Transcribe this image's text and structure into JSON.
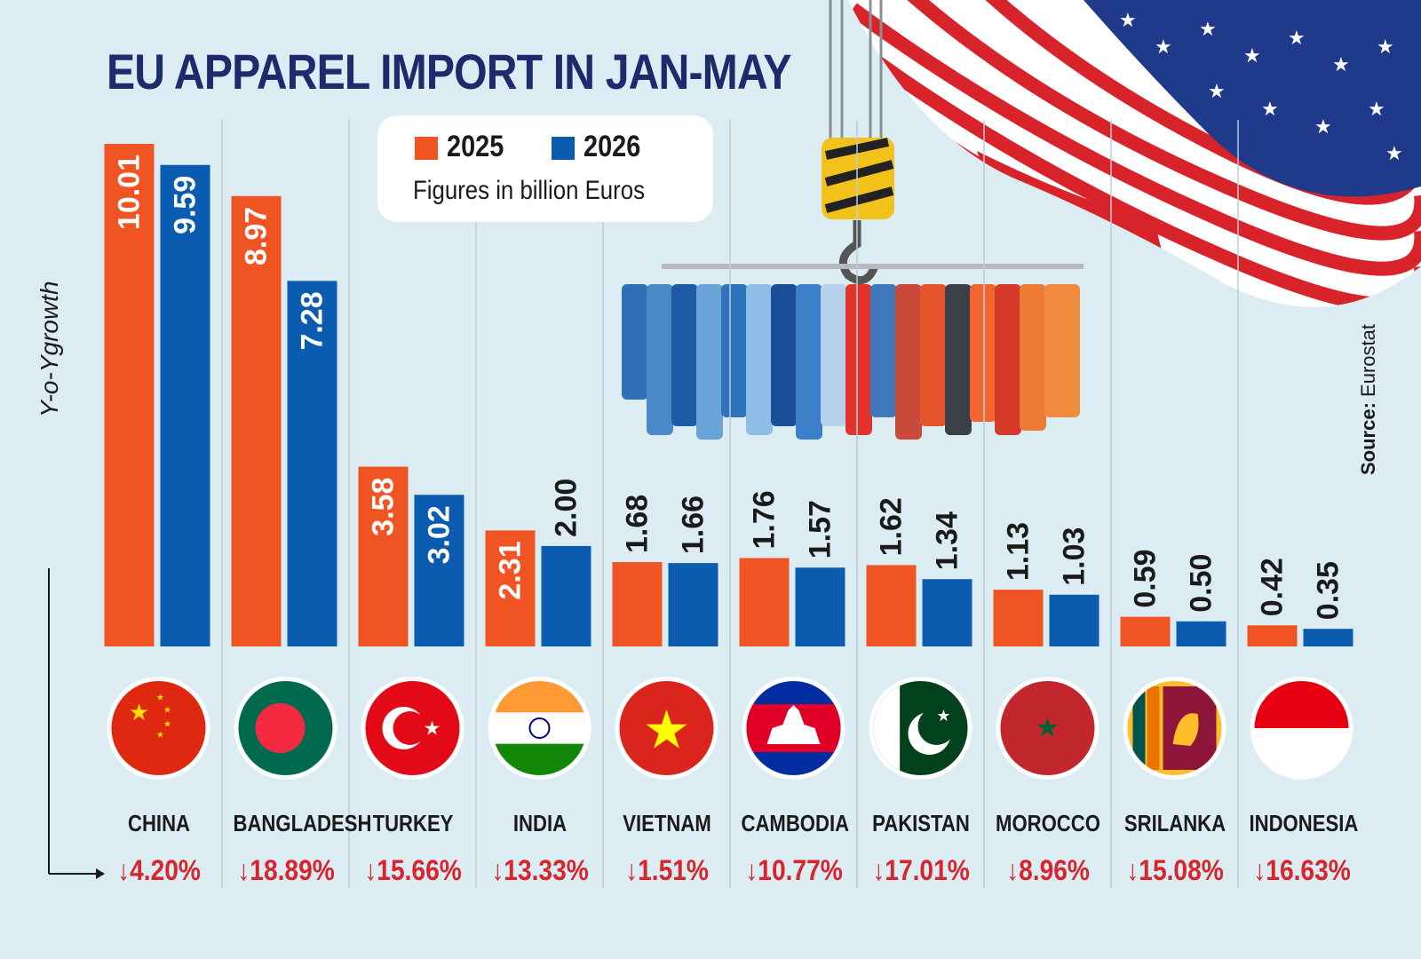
{
  "title": "EU APPAREL IMPORT IN JAN-MAY",
  "legend": {
    "items": [
      "2025",
      "2026"
    ],
    "note": "Figures in billion Euros"
  },
  "y_axis_label": "Y-o-Ygrowth",
  "source_label": "Source:",
  "source_value": "Eurostat",
  "colors": {
    "2025": "#f05423",
    "2026": "#0b5bb0",
    "growth": "#d9242b",
    "background": "#dcecf3",
    "title": "#1d2a6b"
  },
  "chart_data": {
    "type": "bar",
    "categories": [
      "CHINA",
      "BANGLADESH",
      "TURKEY",
      "INDIA",
      "VIETNAM",
      "CAMBODIA",
      "PAKISTAN",
      "MOROCCO",
      "SRILANKA",
      "INDONESIA"
    ],
    "series": [
      {
        "name": "2025",
        "values": [
          10.01,
          8.97,
          3.58,
          2.31,
          1.68,
          1.76,
          1.62,
          1.13,
          0.59,
          0.42
        ],
        "labels": [
          "10.01",
          "8.97",
          "3.58",
          "2.31",
          "1.68",
          "1.76",
          "1.62",
          "1.13",
          "0.59",
          "0.42"
        ]
      },
      {
        "name": "2026",
        "values": [
          9.59,
          7.28,
          3.02,
          2.0,
          1.66,
          1.57,
          1.34,
          1.03,
          0.5,
          0.35
        ],
        "labels": [
          "9.59",
          "7.28",
          "3.02",
          "2.00",
          "1.66",
          "1.57",
          "1.34",
          "1.03",
          "0.50",
          "0.35"
        ]
      }
    ],
    "growth": [
      "↓4.20%",
      "↓18.89%",
      "↓15.66%",
      "↓13.33%",
      "↓1.51%",
      "↓10.77%",
      "↓17.01%",
      "↓8.96%",
      "↓15.08%",
      "↓16.63%"
    ],
    "flags": [
      "china-flag-icon",
      "bangladesh-flag-icon",
      "turkey-flag-icon",
      "india-flag-icon",
      "vietnam-flag-icon",
      "cambodia-flag-icon",
      "pakistan-flag-icon",
      "morocco-flag-icon",
      "srilanka-flag-icon",
      "indonesia-flag-icon"
    ],
    "ylim": [
      0,
      10.01
    ],
    "legend_position": "top-center",
    "grid": false
  }
}
